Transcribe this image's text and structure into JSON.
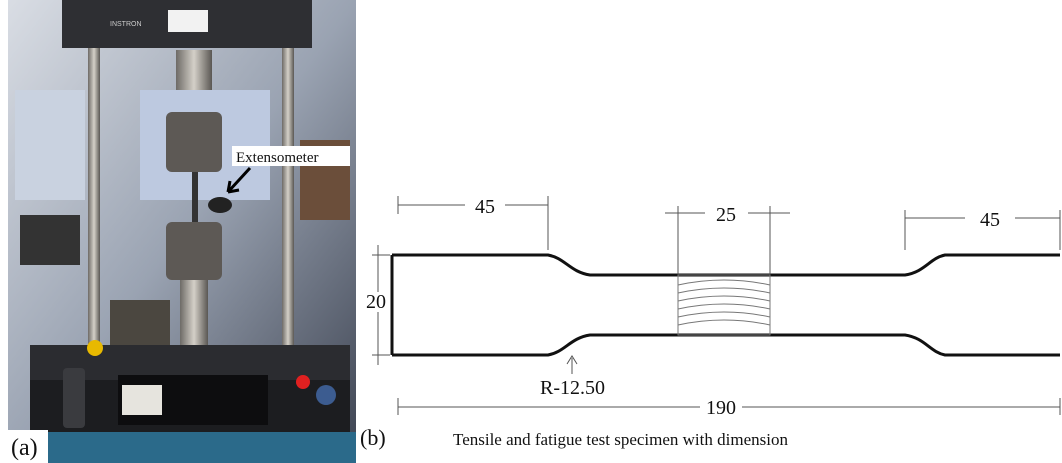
{
  "panel_a": {
    "label": "(a)",
    "annotation": "Extensometer",
    "brand": "INSTRON"
  },
  "panel_b": {
    "label": "(b)",
    "caption": "Tensile and fatigue test specimen with dimension",
    "dimensions": {
      "left_grip": "45",
      "gauge": "25",
      "right_grip": "45",
      "width": "20",
      "radius": "R-12.50",
      "total_length": "190"
    }
  }
}
